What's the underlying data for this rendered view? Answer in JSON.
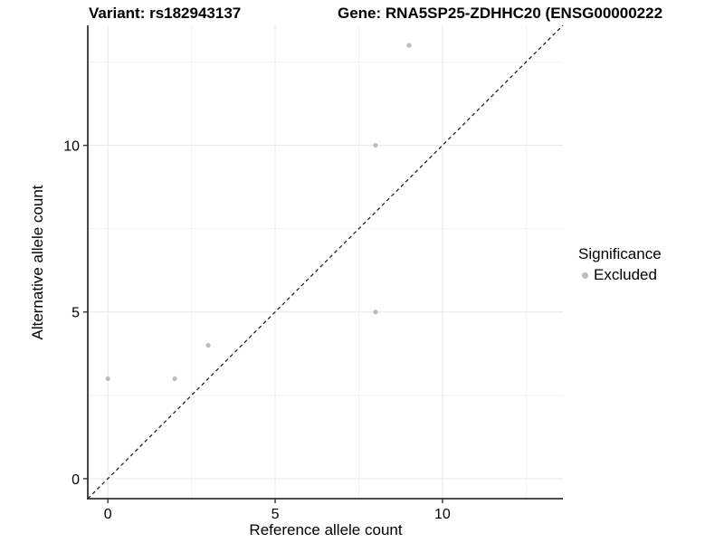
{
  "chart_data": {
    "type": "scatter",
    "title_left": "Variant: rs182943137",
    "title_right": "Gene: RNA5SP25-ZDHHC20 (ENSG00000222",
    "xlabel": "Reference allele count",
    "ylabel": "Alternative allele count",
    "xlim": [
      -0.6,
      13.6
    ],
    "ylim": [
      -0.6,
      13.6
    ],
    "x_major_ticks": [
      0,
      5,
      10
    ],
    "y_major_ticks": [
      0,
      5,
      10
    ],
    "x_minor_ticks": [
      2.5,
      7.5,
      12.5
    ],
    "y_minor_ticks": [
      2.5,
      7.5,
      12.5
    ],
    "grid": true,
    "identity_line": {
      "style": "dashed",
      "color": "#111111"
    },
    "series": [
      {
        "name": "Excluded",
        "color": "#bcbcbc",
        "points": [
          [
            0,
            3
          ],
          [
            2,
            3
          ],
          [
            3,
            4
          ],
          [
            8,
            5
          ],
          [
            8,
            10
          ],
          [
            9,
            13
          ]
        ]
      }
    ],
    "legend": {
      "title": "Significance",
      "position": "right",
      "items": [
        {
          "label": "Excluded",
          "color": "#bcbcbc"
        }
      ]
    }
  },
  "colors": {
    "background": "#ffffff",
    "grid_major": "#e7e7e7",
    "grid_minor": "#f2f2f2",
    "axis_line": "#333333",
    "tick_label": "#000000"
  }
}
